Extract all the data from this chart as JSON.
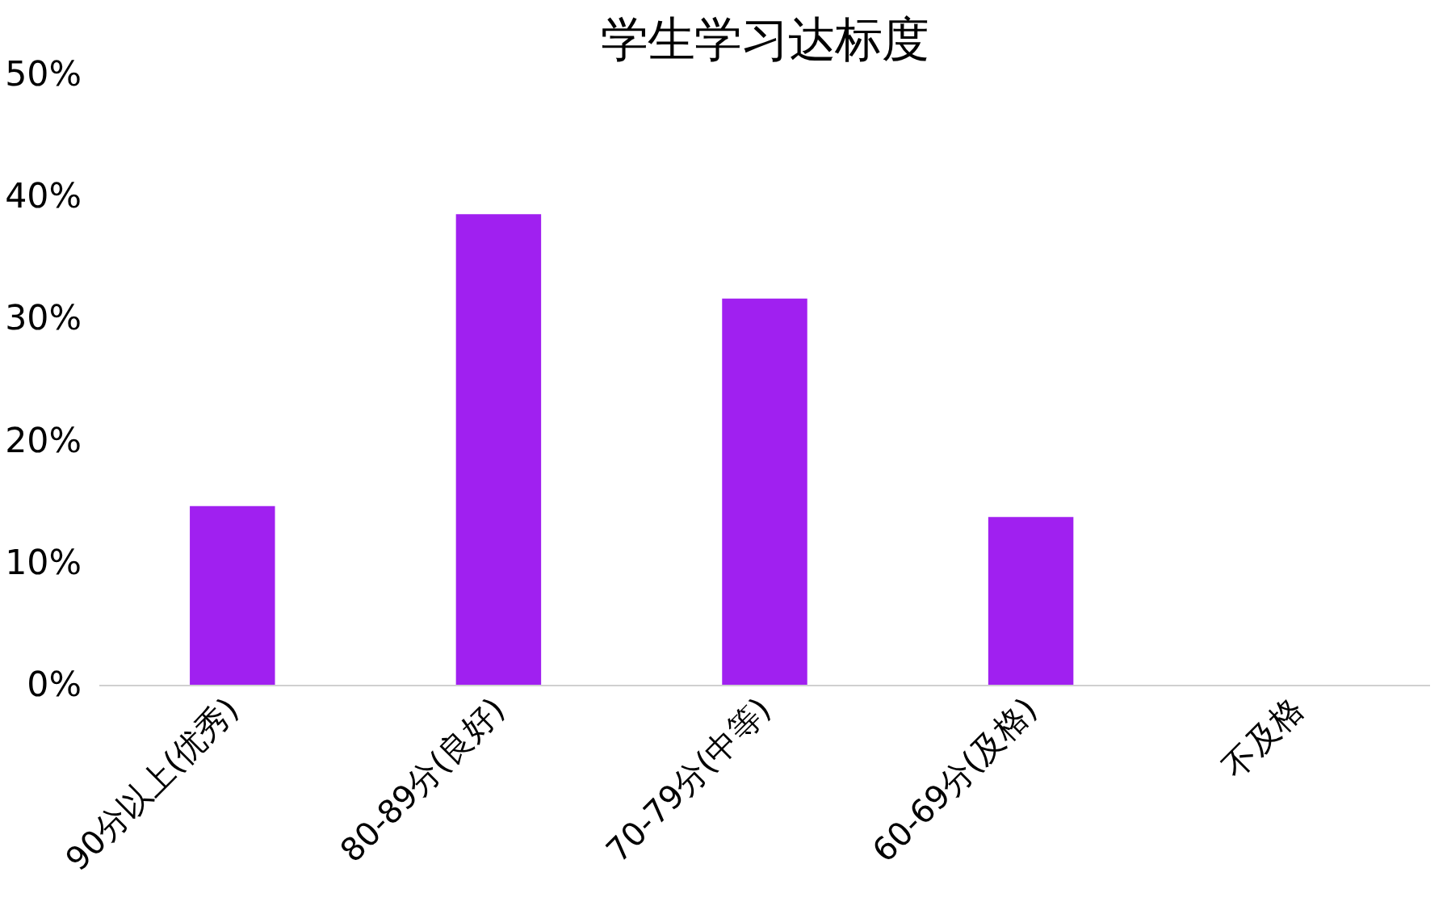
{
  "chart_data": {
    "type": "bar",
    "title": "学生学习达标度",
    "categories": [
      "90分以上(优秀)",
      "80-89分(良好)",
      "70-79分(中等)",
      "60-69分(及格)",
      "不及格"
    ],
    "values": [
      14.7,
      38.6,
      31.7,
      13.8,
      0
    ],
    "color": "#a020f0",
    "ylim": [
      0,
      50
    ],
    "yticks": [
      {
        "value": 0,
        "label": "0%"
      },
      {
        "value": 10,
        "label": "10%"
      },
      {
        "value": 20,
        "label": "20%"
      },
      {
        "value": 30,
        "label": "30%"
      },
      {
        "value": 40,
        "label": "40%"
      },
      {
        "value": 50,
        "label": "50%"
      }
    ],
    "grid": false
  }
}
